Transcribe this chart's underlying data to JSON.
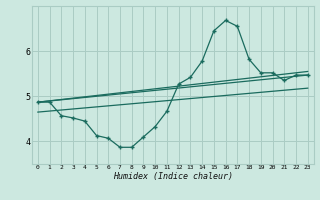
{
  "xlabel": "Humidex (Indice chaleur)",
  "bg_color": "#cce8e0",
  "grid_color": "#aaccC4",
  "line_color": "#1a6b5e",
  "xlim": [
    -0.5,
    23.5
  ],
  "ylim": [
    3.5,
    7.0
  ],
  "xticks": [
    0,
    1,
    2,
    3,
    4,
    5,
    6,
    7,
    8,
    9,
    10,
    11,
    12,
    13,
    14,
    15,
    16,
    17,
    18,
    19,
    20,
    21,
    22,
    23
  ],
  "yticks": [
    4,
    5,
    6
  ],
  "main_x": [
    0,
    1,
    2,
    3,
    4,
    5,
    6,
    7,
    8,
    9,
    10,
    11,
    12,
    13,
    14,
    15,
    16,
    17,
    18,
    19,
    20,
    21,
    22,
    23
  ],
  "main_y": [
    4.87,
    4.87,
    4.57,
    4.52,
    4.45,
    4.13,
    4.07,
    3.87,
    3.87,
    4.1,
    4.33,
    4.67,
    5.27,
    5.42,
    5.78,
    6.45,
    6.68,
    6.55,
    5.82,
    5.52,
    5.52,
    5.35,
    5.47,
    5.47
  ],
  "trend1_x": [
    0,
    23
  ],
  "trend1_y": [
    4.87,
    5.47
  ],
  "trend2_x": [
    0,
    23
  ],
  "trend2_y": [
    4.87,
    5.55
  ],
  "trend3_x": [
    0,
    23
  ],
  "trend3_y": [
    4.65,
    5.18
  ]
}
